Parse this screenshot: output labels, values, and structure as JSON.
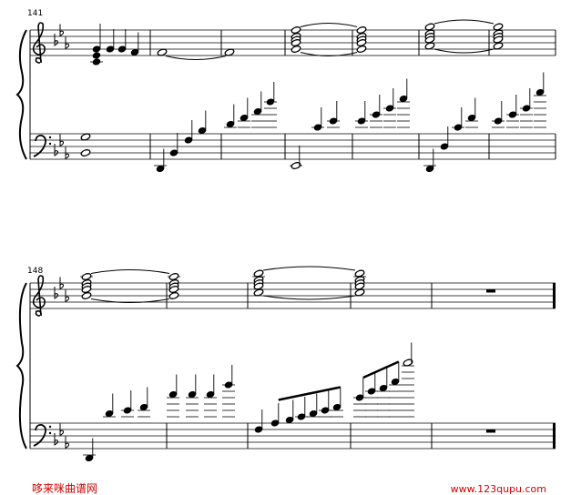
{
  "measures": {
    "system1": "141",
    "system2": "148"
  },
  "footer": {
    "site_name": "哆来咪曲谱网",
    "url": "www.123qupu.com"
  }
}
